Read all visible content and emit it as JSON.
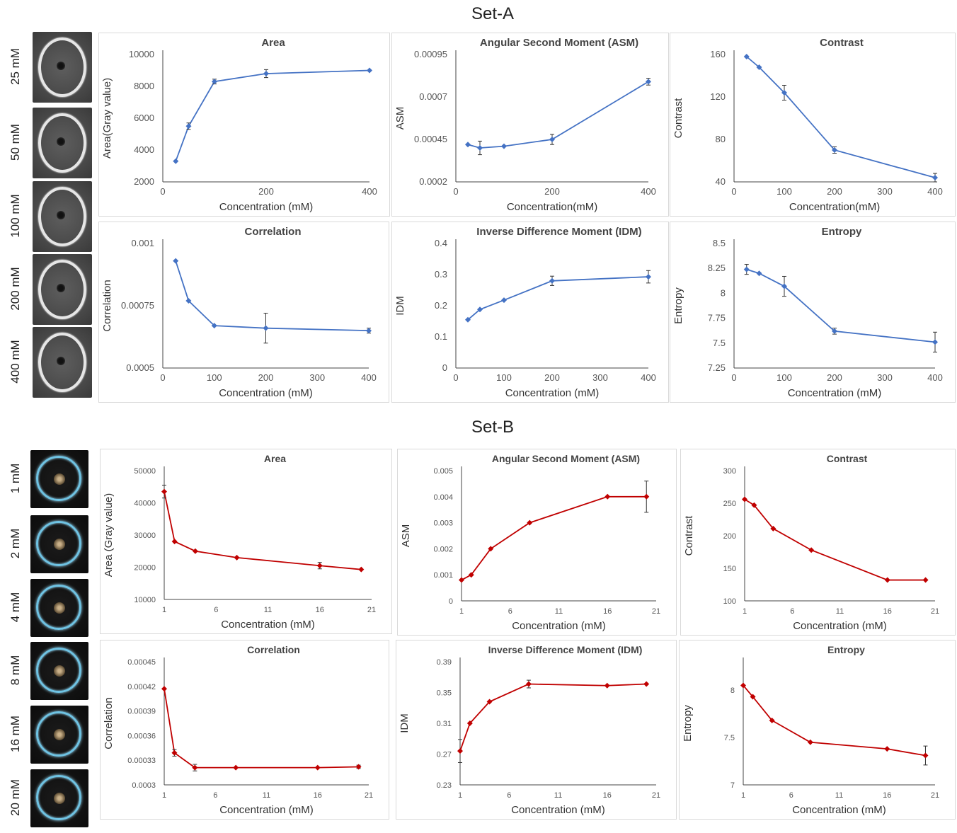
{
  "sets": [
    {
      "title": "Set-A",
      "color": "#4472C4",
      "thumbnail_labels": [
        "25 mM",
        "50 mM",
        "100 mM",
        "200 mM",
        "400 mM"
      ],
      "charts": [
        {
          "type": "line",
          "title": "Area",
          "xlabel": "Concentration (mM)",
          "ylabel": "Area(Gray value)",
          "x": [
            25,
            50,
            100,
            200,
            400
          ],
          "y": [
            3300,
            5500,
            8300,
            8800,
            9000
          ],
          "err": [
            0,
            200,
            150,
            250,
            0
          ],
          "xlim": [
            0,
            400
          ],
          "ylim": [
            2000,
            10000
          ],
          "xticks": [
            0,
            200,
            400
          ],
          "xtick_labels": [
            "0",
            "200",
            "400"
          ],
          "yticks": [
            2000,
            4000,
            6000,
            8000,
            10000
          ],
          "ytick_labels": [
            "2000",
            "4000",
            "6000",
            "8000",
            "10000"
          ]
        },
        {
          "type": "line",
          "title": "Angular Second Moment (ASM)",
          "xlabel": "Concentration(mM)",
          "ylabel": "ASM",
          "x": [
            25,
            50,
            100,
            200,
            400
          ],
          "y": [
            0.00042,
            0.0004,
            0.00041,
            0.00045,
            0.00079
          ],
          "err": [
            0,
            4e-05,
            0,
            3e-05,
            2e-05
          ],
          "xlim": [
            0,
            400
          ],
          "ylim": [
            0.0002,
            0.00095
          ],
          "xticks": [
            0,
            200,
            400
          ],
          "xtick_labels": [
            "0",
            "200",
            "400"
          ],
          "yticks": [
            0.0002,
            0.00045,
            0.0007,
            0.00095
          ],
          "ytick_labels": [
            "0.0002",
            "0.00045",
            "0.0007",
            "0.00095"
          ]
        },
        {
          "type": "line",
          "title": "Contrast",
          "xlabel": "Concentration(mM)",
          "ylabel": "Contrast",
          "x": [
            25,
            50,
            100,
            200,
            400
          ],
          "y": [
            158,
            148,
            124,
            70,
            44
          ],
          "err": [
            0,
            0,
            7,
            3,
            4
          ],
          "xlim": [
            0,
            400
          ],
          "ylim": [
            40,
            160
          ],
          "xticks": [
            0,
            100,
            200,
            300,
            400
          ],
          "xtick_labels": [
            "0",
            "100",
            "200",
            "300",
            "400"
          ],
          "yticks": [
            40,
            80,
            120,
            160
          ],
          "ytick_labels": [
            "40",
            "80",
            "120",
            "160"
          ]
        },
        {
          "type": "line",
          "title": "Correlation",
          "xlabel": "Concentration (mM)",
          "ylabel": "Correlation",
          "x": [
            25,
            50,
            100,
            200,
            400
          ],
          "y": [
            0.00093,
            0.00077,
            0.00067,
            0.00066,
            0.00065
          ],
          "err": [
            0,
            0,
            0,
            6e-05,
            1e-05
          ],
          "xlim": [
            0,
            400
          ],
          "ylim": [
            0.0005,
            0.001
          ],
          "xticks": [
            0,
            100,
            200,
            300,
            400
          ],
          "xtick_labels": [
            "0",
            "100",
            "200",
            "300",
            "400"
          ],
          "yticks": [
            0.0005,
            0.00075,
            0.001
          ],
          "ytick_labels": [
            "0.0005",
            "0.00075",
            "0.001"
          ]
        },
        {
          "type": "line",
          "title": "Inverse Difference Moment (IDM)",
          "xlabel": "Concentration (mM)",
          "ylabel": "IDM",
          "x": [
            25,
            50,
            100,
            200,
            400
          ],
          "y": [
            0.155,
            0.188,
            0.218,
            0.28,
            0.293
          ],
          "err": [
            0,
            0,
            0,
            0.015,
            0.02
          ],
          "xlim": [
            0,
            400
          ],
          "ylim": [
            0,
            0.4
          ],
          "xticks": [
            0,
            100,
            200,
            300,
            400
          ],
          "xtick_labels": [
            "0",
            "100",
            "200",
            "300",
            "400"
          ],
          "yticks": [
            0,
            0.1,
            0.2,
            0.3,
            0.4
          ],
          "ytick_labels": [
            "0",
            "0.1",
            "0.2",
            "0.3",
            "0.4"
          ]
        },
        {
          "type": "line",
          "title": "Entropy",
          "xlabel": "Concentration (mM)",
          "ylabel": "Entropy",
          "x": [
            25,
            50,
            100,
            200,
            400
          ],
          "y": [
            8.24,
            8.2,
            8.07,
            7.62,
            7.51
          ],
          "err": [
            0.05,
            0,
            0.1,
            0.03,
            0.1
          ],
          "xlim": [
            0,
            400
          ],
          "ylim": [
            7.25,
            8.5
          ],
          "xticks": [
            0,
            100,
            200,
            300,
            400
          ],
          "xtick_labels": [
            "0",
            "100",
            "200",
            "300",
            "400"
          ],
          "yticks": [
            7.25,
            7.5,
            7.75,
            8,
            8.25,
            8.5
          ],
          "ytick_labels": [
            "7.25",
            "7.5",
            "7.75",
            "8",
            "8.25",
            "8.5"
          ]
        }
      ]
    },
    {
      "title": "Set-B",
      "color": "#C00000",
      "thumbnail_labels": [
        "1 mM",
        "2 mM",
        "4 mM",
        "8 mM",
        "16 mM",
        "20 mM"
      ],
      "charts": [
        {
          "type": "line",
          "title": "Area",
          "xlabel": "Concentration (mM)",
          "ylabel": "Area (Gray value)",
          "x": [
            1,
            2,
            4,
            8,
            16,
            20
          ],
          "y": [
            43500,
            28000,
            25000,
            23000,
            20500,
            19300
          ],
          "err": [
            2000,
            0,
            0,
            0,
            1000,
            0
          ],
          "xlim": [
            1,
            21
          ],
          "ylim": [
            10000,
            50000
          ],
          "xticks": [
            1,
            6,
            11,
            16,
            21
          ],
          "xtick_labels": [
            "1",
            "6",
            "11",
            "16",
            "21"
          ],
          "yticks": [
            10000,
            20000,
            30000,
            40000,
            50000
          ],
          "ytick_labels": [
            "10000",
            "20000",
            "30000",
            "40000",
            "50000"
          ]
        },
        {
          "type": "line",
          "title": "Angular Second Moment (ASM)",
          "xlabel": "Concentration (mM)",
          "ylabel": "ASM",
          "x": [
            1,
            2,
            4,
            8,
            16,
            20
          ],
          "y": [
            0.0008,
            0.001,
            0.002,
            0.003,
            0.004,
            0.004
          ],
          "err": [
            0,
            0,
            0,
            0,
            0,
            0.0006
          ],
          "xlim": [
            1,
            21
          ],
          "ylim": [
            0,
            0.005
          ],
          "xticks": [
            1,
            6,
            11,
            16,
            21
          ],
          "xtick_labels": [
            "1",
            "6",
            "11",
            "16",
            "21"
          ],
          "yticks": [
            0,
            0.001,
            0.002,
            0.003,
            0.004,
            0.005
          ],
          "ytick_labels": [
            "0",
            "0.001",
            "0.002",
            "0.003",
            "0.004",
            "0.005"
          ]
        },
        {
          "type": "line",
          "title": "Contrast",
          "xlabel": "Concentration (mM)",
          "ylabel": "Contrast",
          "x": [
            1,
            2,
            4,
            8,
            16,
            20
          ],
          "y": [
            256,
            247,
            211,
            178,
            132,
            132
          ],
          "err": [
            0,
            0,
            0,
            0,
            0,
            0
          ],
          "xlim": [
            1,
            21
          ],
          "ylim": [
            100,
            300
          ],
          "xticks": [
            1,
            6,
            11,
            16,
            21
          ],
          "xtick_labels": [
            "1",
            "6",
            "11",
            "16",
            "21"
          ],
          "yticks": [
            100,
            150,
            200,
            250,
            300
          ],
          "ytick_labels": [
            "100",
            "150",
            "200",
            "250",
            "300"
          ]
        },
        {
          "type": "line",
          "title": "Correlation",
          "xlabel": "Concentration (mM)",
          "ylabel": "Correlation",
          "x": [
            1,
            2,
            4,
            8,
            16,
            20
          ],
          "y": [
            0.000417,
            0.000339,
            0.000321,
            0.000321,
            0.000321,
            0.000322
          ],
          "err": [
            0,
            4e-06,
            4e-06,
            0,
            0,
            2e-06
          ],
          "xlim": [
            1,
            21
          ],
          "ylim": [
            0.0003,
            0.00045
          ],
          "xticks": [
            1,
            6,
            11,
            16,
            21
          ],
          "xtick_labels": [
            "1",
            "6",
            "11",
            "16",
            "21"
          ],
          "yticks": [
            0.0003,
            0.00033,
            0.00036,
            0.00039,
            0.00042,
            0.00045
          ],
          "ytick_labels": [
            "0.0003",
            "0.00033",
            "0.00036",
            "0.00039",
            "0.00042",
            "0.00045"
          ]
        },
        {
          "type": "line",
          "title": "Inverse Difference Moment (IDM)",
          "xlabel": "Concentration (mM)",
          "ylabel": "IDM",
          "x": [
            1,
            2,
            4,
            8,
            16,
            20
          ],
          "y": [
            0.274,
            0.31,
            0.338,
            0.361,
            0.359,
            0.361
          ],
          "err": [
            0.015,
            0,
            0,
            0.005,
            0,
            0
          ],
          "xlim": [
            1,
            21
          ],
          "ylim": [
            0.23,
            0.39
          ],
          "xticks": [
            1,
            6,
            11,
            16,
            21
          ],
          "xtick_labels": [
            "1",
            "6",
            "11",
            "16",
            "21"
          ],
          "yticks": [
            0.23,
            0.27,
            0.31,
            0.35,
            0.39
          ],
          "ytick_labels": [
            "0.23",
            "0.27",
            "0.31",
            "0.35",
            "0.39"
          ]
        },
        {
          "type": "line",
          "title": "Entropy",
          "xlabel": "Concentration (mM)",
          "ylabel": "Entropy",
          "x": [
            1,
            2,
            4,
            8,
            16,
            20
          ],
          "y": [
            8.05,
            7.93,
            7.68,
            7.45,
            7.38,
            7.31
          ],
          "err": [
            0,
            0,
            0,
            0,
            0,
            0.1
          ],
          "xlim": [
            1,
            21
          ],
          "ylim": [
            7,
            8.3
          ],
          "xticks": [
            1,
            6,
            11,
            16,
            21
          ],
          "xtick_labels": [
            "1",
            "6",
            "11",
            "16",
            "21"
          ],
          "yticks": [
            7,
            7.5,
            8
          ],
          "ytick_labels": [
            "7",
            "7.5",
            "8"
          ]
        }
      ]
    }
  ]
}
